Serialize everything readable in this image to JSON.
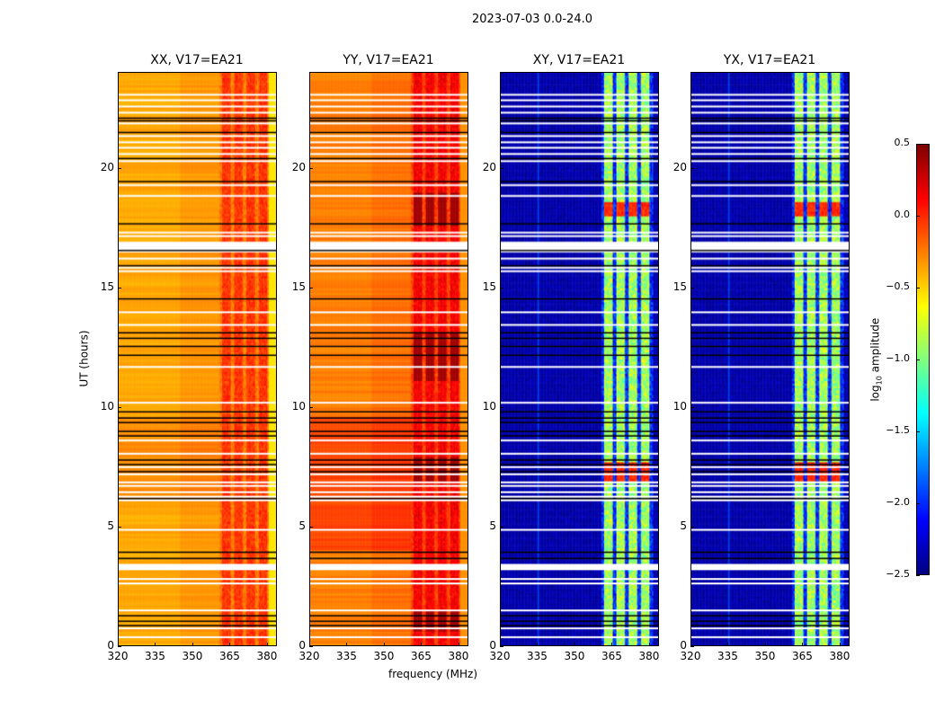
{
  "chart_data": {
    "type": "heatmap",
    "title": "2023-07-03 0.0-24.0",
    "xlabel": "frequency (MHz)",
    "ylabel": "UT (hours)",
    "xlim": [
      320,
      384
    ],
    "ylim": [
      0,
      24
    ],
    "xticks": [
      320,
      335,
      350,
      365,
      380
    ],
    "yticks": [
      0,
      5,
      10,
      15,
      20
    ],
    "colorbar": {
      "label_main": "log",
      "label_sub": "10",
      "label_rest": " amplitude",
      "range": [
        -2.5,
        0.5
      ],
      "ticks": [
        "0.5",
        "0.0",
        "−0.5",
        "−1.0",
        "−1.5",
        "−2.0",
        "−2.5"
      ],
      "tick_values": [
        0.5,
        0,
        -0.5,
        -1,
        -1.5,
        -2,
        -2.5
      ],
      "colormap": "jet"
    },
    "panels": [
      {
        "title": "XX, V17=EA21",
        "kind": "parallel",
        "base": -0.32,
        "band_level": -0.08
      },
      {
        "title": "YY, V17=EA21",
        "kind": "parallel_y",
        "base": -0.2,
        "band_level": 0.1
      },
      {
        "title": "XY, V17=EA21",
        "kind": "cross",
        "base": -2.45,
        "band_level": -0.9
      },
      {
        "title": "YX, V17=EA21",
        "kind": "cross",
        "base": -2.45,
        "band_level": -0.9
      }
    ],
    "subbands_mhz": [
      [
        362,
        365.5
      ],
      [
        367,
        370.5
      ],
      [
        372,
        375.5
      ],
      [
        377,
        380.5
      ]
    ],
    "flagged_white_hours": [
      23.08,
      22.85,
      22.59,
      22.33,
      21.88,
      21.35,
      21.09,
      20.86,
      20.6,
      20.3,
      19.29,
      18.84,
      17.3,
      17.15,
      16.21,
      15.83,
      15.68,
      13.96,
      13.43,
      11.67,
      10.17,
      8.59,
      8.03,
      7.47,
      7.17,
      6.83,
      6.68,
      6.42,
      6.23,
      6.08,
      4.84,
      2.78,
      2.59,
      1.46,
      0.71,
      0.34
    ],
    "flagged_white_bands_hours": [
      [
        16.47,
        16.92
      ],
      [
        3.15,
        3.41
      ]
    ],
    "flagged_black_hours": [
      22.1,
      21.99,
      21.5,
      20.41,
      19.44,
      17.67,
      16.55,
      15.91,
      14.52,
      13.1,
      12.87,
      12.53,
      12.16,
      9.79,
      9.53,
      9.34,
      8.97,
      8.78,
      7.77,
      7.58,
      7.28,
      6.15,
      3.9,
      3.64,
      1.24,
      1.01,
      0.83
    ]
  }
}
